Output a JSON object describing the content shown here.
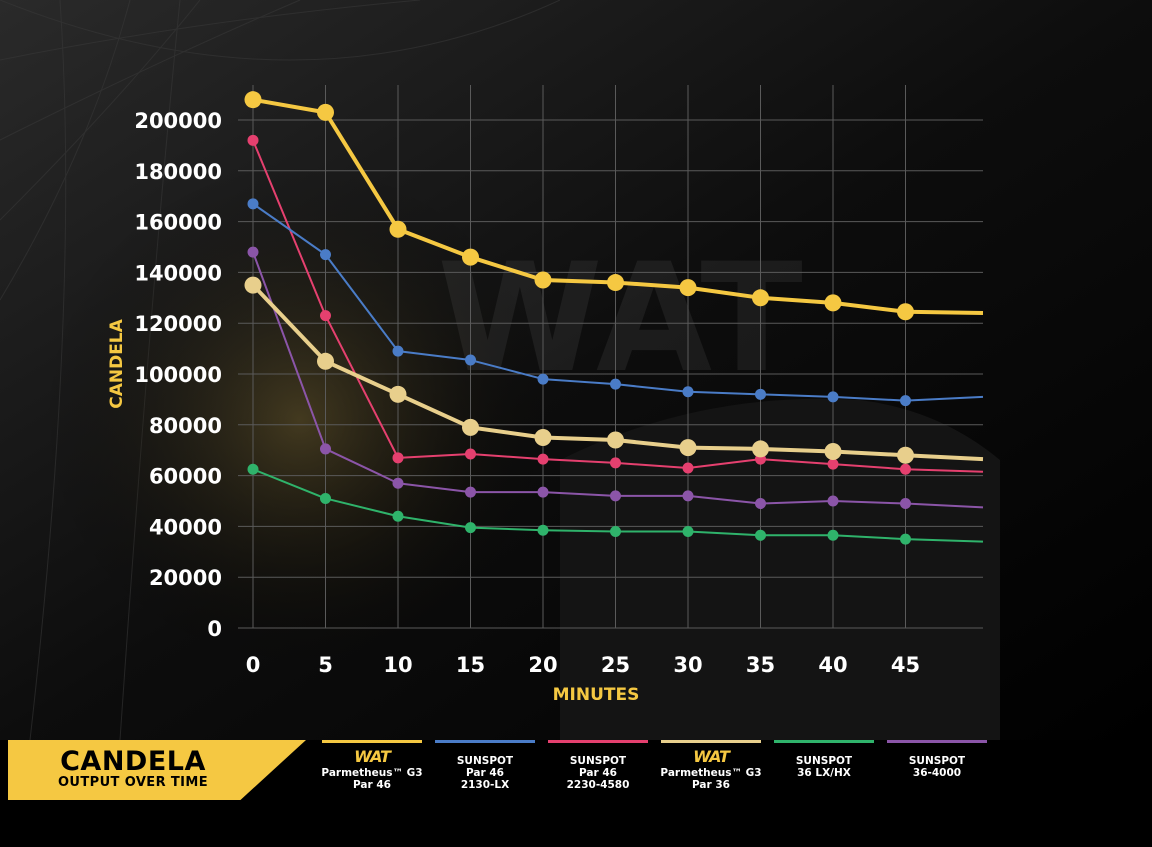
{
  "chart_data": {
    "type": "line",
    "title": "",
    "xlabel": "MINUTES",
    "ylabel": "CANDELA",
    "xlim": [
      0,
      50
    ],
    "ylim": [
      0,
      200000
    ],
    "x": [
      0,
      5,
      10,
      15,
      20,
      25,
      30,
      35,
      40,
      45
    ],
    "x_ticks": [
      "0",
      "5",
      "10",
      "15",
      "20",
      "25",
      "30",
      "35",
      "40",
      "45"
    ],
    "y_ticks": [
      "0",
      "20000",
      "40000",
      "60000",
      "80000",
      "100000",
      "120000",
      "140000",
      "160000",
      "180000",
      "200000"
    ],
    "grid": true,
    "series": [
      {
        "key": "wat_par46",
        "color": "#f5c842",
        "values": [
          208000,
          203000,
          157000,
          146000,
          137000,
          136000,
          134000,
          130000,
          128000,
          124500
        ],
        "end": 124000
      },
      {
        "key": "sunspot_2130",
        "color": "#4a7cc7",
        "values": [
          167000,
          147000,
          109000,
          105500,
          98000,
          96000,
          93000,
          92000,
          91000,
          89500
        ],
        "end": 91000
      },
      {
        "key": "sunspot_2230",
        "color": "#e5406f",
        "values": [
          192000,
          123000,
          67000,
          68500,
          66500,
          65000,
          63000,
          66500,
          64500,
          62500
        ],
        "end": 61500
      },
      {
        "key": "wat_par36",
        "color": "#e8cf8c",
        "values": [
          135000,
          105000,
          92000,
          79000,
          75000,
          74000,
          71000,
          70500,
          69500,
          68000
        ],
        "end": 66500
      },
      {
        "key": "sunspot_36lx",
        "color": "#2fb36b",
        "values": [
          62500,
          51000,
          44000,
          39500,
          38500,
          38000,
          38000,
          36500,
          36500,
          35000
        ],
        "end": 34000
      },
      {
        "key": "sunspot_36_4000",
        "color": "#8b55a8",
        "values": [
          148000,
          70500,
          57000,
          53500,
          53500,
          52000,
          52000,
          49000,
          50000,
          49000
        ],
        "end": 47500
      }
    ]
  },
  "footer": {
    "title": "CANDELA",
    "subtitle": "OUTPUT OVER TIME",
    "legend": [
      {
        "logo": "WAT",
        "lines": [
          "Parmetheus™ G3",
          "Par 46"
        ],
        "color": "#f5c842"
      },
      {
        "logo": "",
        "lines": [
          "SUNSPOT",
          "Par 46",
          "2130-LX"
        ],
        "color": "#4a7cc7"
      },
      {
        "logo": "",
        "lines": [
          "SUNSPOT",
          "Par 46",
          "2230-4580"
        ],
        "color": "#e5406f"
      },
      {
        "logo": "WAT",
        "lines": [
          "Parmetheus™ G3",
          "Par 36"
        ],
        "color": "#e8cf8c"
      },
      {
        "logo": "",
        "lines": [
          "SUNSPOT",
          "36 LX/HX"
        ],
        "color": "#2fb36b"
      },
      {
        "logo": "",
        "lines": [
          "SUNSPOT",
          "36-4000"
        ],
        "color": "#8b55a8"
      }
    ]
  }
}
